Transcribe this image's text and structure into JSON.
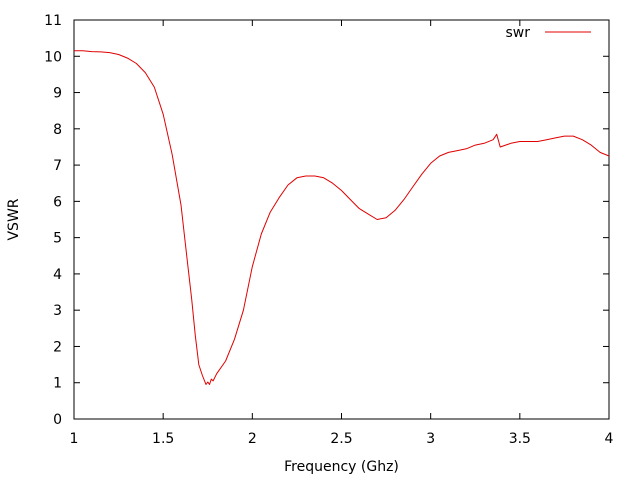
{
  "chart_data": {
    "type": "line",
    "title": "",
    "xlabel": "Frequency (Ghz)",
    "ylabel": "VSWR",
    "xlim": [
      1,
      4
    ],
    "ylim": [
      0,
      11
    ],
    "xticks": [
      1,
      1.5,
      2,
      2.5,
      3,
      3.5,
      4
    ],
    "yticks": [
      0,
      1,
      2,
      3,
      4,
      5,
      6,
      7,
      8,
      9,
      10,
      11
    ],
    "xtick_labels": [
      "1",
      "1.5",
      "2",
      "2.5",
      "3",
      "3.5",
      "4"
    ],
    "ytick_labels": [
      "0",
      "1",
      "2",
      "3",
      "4",
      "5",
      "6",
      "7",
      "8",
      "9",
      "10",
      "11"
    ],
    "grid": false,
    "legend": "top-right",
    "series": [
      {
        "name": "swr",
        "color": "#e00000",
        "x": [
          1.0,
          1.05,
          1.1,
          1.15,
          1.2,
          1.25,
          1.3,
          1.35,
          1.4,
          1.45,
          1.5,
          1.55,
          1.6,
          1.63,
          1.66,
          1.68,
          1.7,
          1.72,
          1.74,
          1.75,
          1.76,
          1.77,
          1.78,
          1.8,
          1.85,
          1.9,
          1.95,
          2.0,
          2.05,
          2.1,
          2.15,
          2.2,
          2.25,
          2.3,
          2.35,
          2.4,
          2.45,
          2.5,
          2.55,
          2.6,
          2.65,
          2.7,
          2.75,
          2.8,
          2.85,
          2.9,
          2.95,
          3.0,
          3.05,
          3.1,
          3.15,
          3.2,
          3.25,
          3.3,
          3.35,
          3.37,
          3.39,
          3.42,
          3.45,
          3.5,
          3.55,
          3.6,
          3.65,
          3.7,
          3.75,
          3.8,
          3.85,
          3.9,
          3.95,
          4.0
        ],
        "y": [
          10.15,
          10.15,
          10.13,
          10.12,
          10.1,
          10.05,
          9.95,
          9.8,
          9.55,
          9.15,
          8.4,
          7.3,
          5.9,
          4.6,
          3.3,
          2.3,
          1.5,
          1.2,
          0.95,
          1.02,
          0.95,
          1.1,
          1.05,
          1.25,
          1.6,
          2.2,
          3.0,
          4.2,
          5.1,
          5.7,
          6.1,
          6.45,
          6.65,
          6.7,
          6.7,
          6.65,
          6.5,
          6.3,
          6.05,
          5.8,
          5.65,
          5.5,
          5.55,
          5.75,
          6.05,
          6.4,
          6.75,
          7.05,
          7.25,
          7.35,
          7.4,
          7.45,
          7.55,
          7.6,
          7.7,
          7.85,
          7.5,
          7.55,
          7.6,
          7.65,
          7.65,
          7.65,
          7.7,
          7.75,
          7.8,
          7.8,
          7.7,
          7.55,
          7.35,
          7.25
        ]
      }
    ]
  }
}
